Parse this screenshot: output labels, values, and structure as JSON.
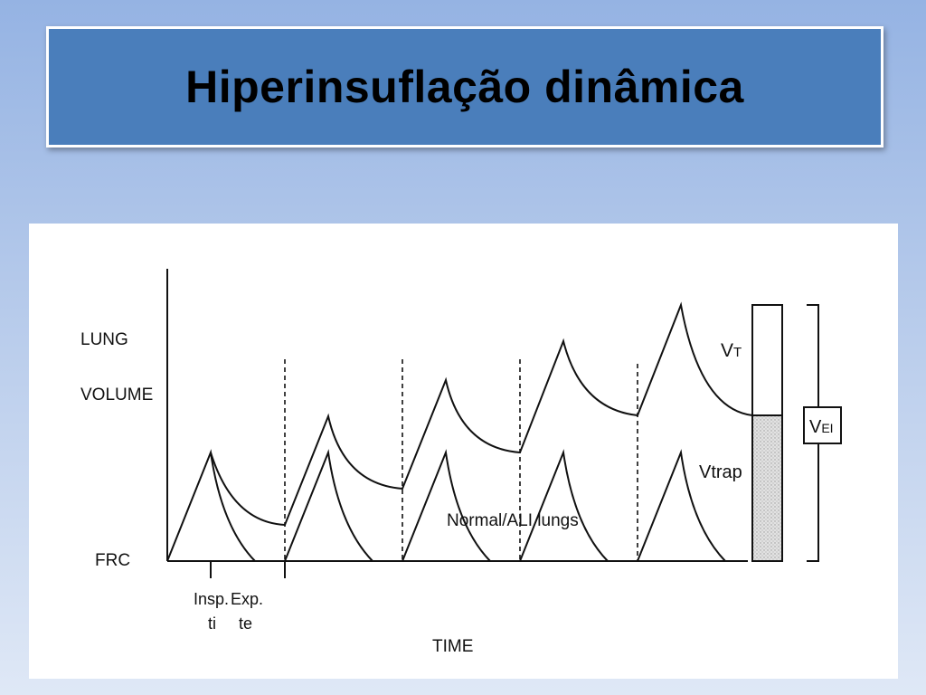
{
  "slide": {
    "title": "Hiperinsuflação dinâmica"
  },
  "diagram": {
    "y_axis": {
      "line1": "LUNG",
      "line2": "VOLUME",
      "baseline": "FRC"
    },
    "x_axis": {
      "label": "TIME",
      "insp_line1": "Insp.",
      "insp_line2": "ti",
      "exp_line1": "Exp.",
      "exp_line2": "te"
    },
    "curve_label": "Normal/ALI lungs",
    "vt_main": "V",
    "vt_sub": "T",
    "vtrap": "Vtrap",
    "vei_main": "V",
    "vei_sub": "EI",
    "colors": {
      "ink": "#111111",
      "title_bg": "#4a7ebb",
      "bar_fill": "#d4d4d4"
    }
  }
}
